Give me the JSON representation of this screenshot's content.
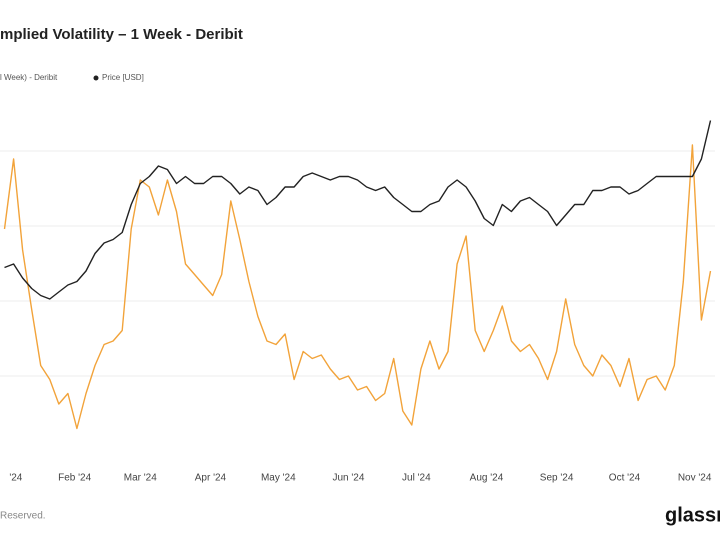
{
  "chart_data": {
    "type": "line",
    "title": "mplied Volatility – 1 Week - Deribit",
    "footer": "Reserved.",
    "logo": "glassn",
    "x": [
      0,
      4,
      8,
      12,
      16,
      20,
      24,
      28,
      32,
      36,
      40,
      44,
      48,
      52,
      56,
      60,
      64,
      68,
      72,
      76,
      80,
      84,
      88,
      92,
      96,
      100,
      104,
      108,
      112,
      116,
      120,
      124,
      128,
      132,
      136,
      140,
      144,
      148,
      152,
      156,
      160,
      164,
      168,
      172,
      176,
      180,
      184,
      188,
      192,
      196,
      200,
      204,
      208,
      212,
      216,
      220,
      224,
      228,
      232,
      236,
      240,
      244,
      248,
      252,
      256,
      260,
      264,
      268,
      272,
      276,
      280,
      284,
      288,
      292,
      296,
      300,
      304,
      308,
      312
    ],
    "xlim": [
      -2,
      314
    ],
    "xticks": [
      {
        "value": 5,
        "label": "'24"
      },
      {
        "value": 31,
        "label": "Feb '24"
      },
      {
        "value": 60,
        "label": "Mar '24"
      },
      {
        "value": 91,
        "label": "Apr '24"
      },
      {
        "value": 121,
        "label": "May '24"
      },
      {
        "value": 152,
        "label": "Jun '24"
      },
      {
        "value": 182,
        "label": "Jul '24"
      },
      {
        "value": 213,
        "label": "Aug '24"
      },
      {
        "value": 244,
        "label": "Sep '24"
      },
      {
        "value": 274,
        "label": "Oct '24"
      },
      {
        "value": 305,
        "label": "Nov '24"
      }
    ],
    "ylim": [
      0,
      100
    ],
    "series": [
      {
        "name": "l Week) - Deribit",
        "color": "#f2a33a",
        "values": [
          66,
          86,
          60,
          43,
          27,
          23,
          16,
          19,
          9,
          19,
          27,
          33,
          34,
          37,
          66,
          80,
          78,
          70,
          80,
          71,
          56,
          53,
          50,
          47,
          53,
          74,
          63,
          51,
          41,
          34,
          33,
          36,
          23,
          31,
          29,
          30,
          26,
          23,
          24,
          20,
          21,
          17,
          19,
          29,
          14,
          10,
          26,
          34,
          26,
          31,
          56,
          64,
          37,
          31,
          37,
          44,
          34,
          31,
          33,
          29,
          23,
          31,
          46,
          33,
          27,
          24,
          30,
          27,
          21,
          29,
          17,
          23,
          24,
          20,
          27,
          51,
          90,
          40,
          54
        ]
      },
      {
        "name": "Price [USD]",
        "color": "#222222",
        "values": [
          55,
          56,
          52,
          49,
          47,
          46,
          48,
          50,
          51,
          54,
          59,
          62,
          63,
          65,
          73,
          79,
          81,
          84,
          83,
          79,
          81,
          79,
          79,
          81,
          81,
          79,
          76,
          78,
          77,
          73,
          75,
          78,
          78,
          81,
          82,
          81,
          80,
          81,
          81,
          80,
          78,
          77,
          78,
          75,
          73,
          71,
          71,
          73,
          74,
          78,
          80,
          78,
          74,
          69,
          67,
          73,
          71,
          74,
          75,
          73,
          71,
          67,
          70,
          73,
          73,
          77,
          77,
          78,
          78,
          76,
          77,
          79,
          81,
          81,
          81,
          81,
          81,
          86,
          97
        ]
      }
    ]
  }
}
